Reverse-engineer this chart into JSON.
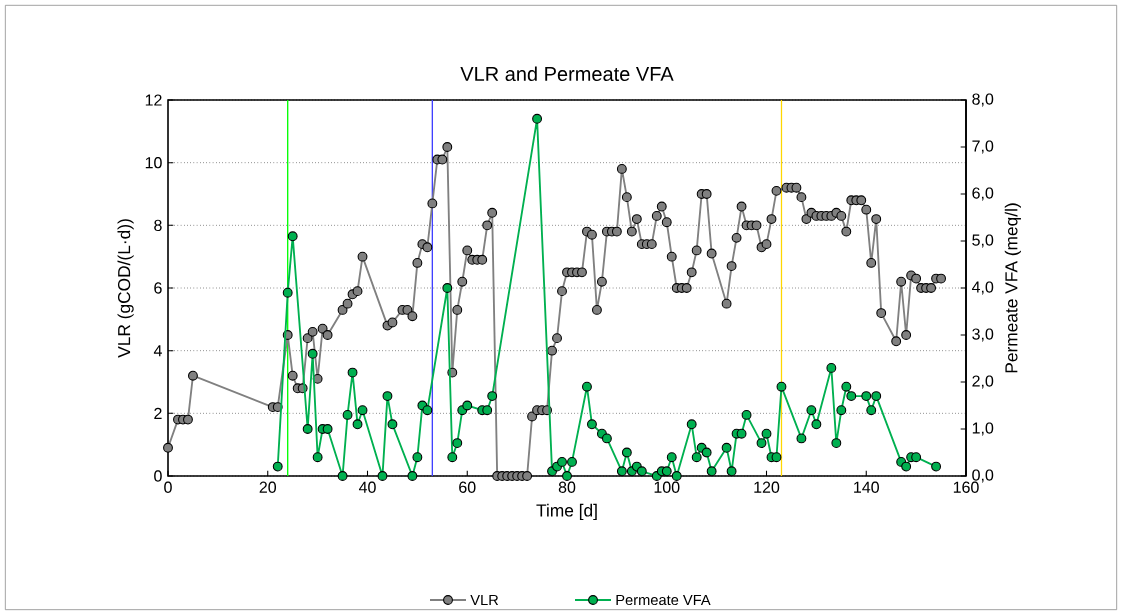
{
  "chart_data": {
    "type": "line",
    "title": "VLR and Permeate VFA",
    "xlabel": "Time [d]",
    "ylabel": "VLR (gCOD/(L·d))",
    "y2label": "Permeate VFA (meq/l)",
    "xlim": [
      0,
      160
    ],
    "xticks": [
      0,
      20,
      40,
      60,
      80,
      100,
      120,
      140,
      160
    ],
    "ylim": [
      0,
      12
    ],
    "yticks": [
      0,
      2,
      4,
      6,
      8,
      10,
      12
    ],
    "y2lim": [
      0,
      8
    ],
    "y2ticks": [
      {
        "value": 0,
        "label": "0,0"
      },
      {
        "value": 1,
        "label": "1,0"
      },
      {
        "value": 2,
        "label": "2,0"
      },
      {
        "value": 3,
        "label": "3,0"
      },
      {
        "value": 4,
        "label": "4,0"
      },
      {
        "value": 5,
        "label": "5,0"
      },
      {
        "value": 6,
        "label": "6,0"
      },
      {
        "value": 7,
        "label": "7,0"
      },
      {
        "value": 8,
        "label": "8,0"
      }
    ],
    "grid": "y",
    "legend": "bottom",
    "marker": "circle",
    "line_style": "solid",
    "ref_lines": [
      {
        "axis": "x",
        "value": 24,
        "color": "#00ff00"
      },
      {
        "axis": "x",
        "value": 53,
        "color": "#4040ff"
      },
      {
        "axis": "x",
        "value": 123,
        "color": "#ffd700"
      }
    ],
    "series": [
      {
        "name": "VLR",
        "color": "#808080",
        "x": [
          0,
          2,
          3,
          4,
          5,
          21,
          22,
          24,
          25,
          26,
          27,
          28,
          29,
          30,
          31,
          32,
          35,
          36,
          37,
          38,
          39,
          44,
          45,
          47,
          48,
          49,
          50,
          51,
          52,
          53,
          54,
          55,
          56,
          57,
          58,
          59,
          60,
          61,
          62,
          63,
          64,
          65,
          66,
          67,
          68,
          69,
          70,
          71,
          72,
          73,
          74,
          75,
          76,
          77,
          78,
          79,
          80,
          81,
          82,
          83,
          84,
          85,
          86,
          87,
          88,
          89,
          90,
          91,
          92,
          93,
          94,
          95,
          96,
          97,
          98,
          99,
          100,
          101,
          102,
          103,
          104,
          105,
          106,
          107,
          108,
          109,
          112,
          113,
          114,
          115,
          116,
          117,
          118,
          119,
          120,
          121,
          122,
          124,
          125,
          126,
          127,
          128,
          129,
          130,
          131,
          132,
          133,
          134,
          135,
          136,
          137,
          138,
          139,
          140,
          141,
          142,
          143,
          146,
          147,
          148,
          149,
          150,
          151,
          152,
          153,
          154,
          155
        ],
        "values": [
          0.9,
          1.8,
          1.8,
          1.8,
          3.2,
          2.2,
          2.2,
          4.5,
          3.2,
          2.8,
          2.8,
          4.4,
          4.6,
          3.1,
          4.7,
          4.5,
          5.3,
          5.5,
          5.8,
          5.9,
          7.0,
          4.8,
          4.9,
          5.3,
          5.3,
          5.1,
          6.8,
          7.4,
          7.3,
          8.7,
          10.1,
          10.1,
          10.5,
          3.3,
          5.3,
          6.2,
          7.2,
          6.9,
          6.9,
          6.9,
          8.0,
          8.4,
          0,
          0,
          0,
          0,
          0,
          0,
          0,
          1.9,
          2.1,
          2.1,
          2.1,
          4.0,
          4.4,
          5.9,
          6.5,
          6.5,
          6.5,
          6.5,
          7.8,
          7.7,
          5.3,
          6.2,
          7.8,
          7.8,
          7.8,
          9.8,
          8.9,
          7.8,
          8.2,
          7.4,
          7.4,
          7.4,
          8.3,
          8.6,
          8.1,
          7.0,
          6.0,
          6.0,
          6.0,
          6.5,
          7.2,
          9.0,
          9.0,
          7.1,
          5.5,
          6.7,
          7.6,
          8.6,
          8.0,
          8.0,
          8.0,
          7.3,
          7.4,
          8.2,
          9.1,
          9.2,
          9.2,
          9.2,
          8.9,
          8.2,
          8.4,
          8.3,
          8.3,
          8.3,
          8.3,
          8.4,
          8.3,
          7.8,
          8.8,
          8.8,
          8.8,
          8.5,
          6.8,
          8.2,
          5.2,
          4.3,
          6.2,
          4.5,
          6.4,
          6.3,
          6.0,
          6.0,
          6.0,
          6.3,
          6.3
        ]
      },
      {
        "name": "Permeate VFA",
        "color": "#00b050",
        "axis": "y2",
        "x": [
          22,
          24,
          25,
          28,
          29,
          30,
          31,
          32,
          35,
          36,
          37,
          38,
          39,
          43,
          44,
          45,
          49,
          50,
          51,
          52,
          56,
          57,
          58,
          59,
          60,
          63,
          64,
          65,
          74,
          77,
          78,
          79,
          80,
          81,
          84,
          85,
          87,
          88,
          91,
          92,
          93,
          94,
          95,
          98,
          99,
          100,
          101,
          102,
          105,
          106,
          107,
          108,
          109,
          112,
          113,
          114,
          115,
          116,
          119,
          120,
          121,
          122,
          123,
          127,
          129,
          130,
          133,
          134,
          135,
          136,
          137,
          140,
          141,
          142,
          147,
          148,
          149,
          150,
          154
        ],
        "values": [
          0.2,
          3.9,
          5.1,
          1.0,
          2.6,
          0.4,
          1.0,
          1.0,
          0.0,
          1.3,
          2.2,
          1.1,
          1.4,
          0.0,
          1.7,
          1.1,
          0.0,
          0.4,
          1.5,
          1.4,
          4.0,
          0.4,
          0.7,
          1.4,
          1.5,
          1.4,
          1.4,
          1.7,
          7.6,
          0.1,
          0.2,
          0.3,
          0.0,
          0.3,
          1.9,
          1.1,
          0.9,
          0.8,
          0.1,
          0.5,
          0.1,
          0.2,
          0.1,
          0.0,
          0.1,
          0.1,
          0.4,
          0.0,
          1.1,
          0.4,
          0.6,
          0.5,
          0.1,
          0.6,
          0.1,
          0.9,
          0.9,
          1.3,
          0.7,
          0.9,
          0.4,
          0.4,
          1.9,
          0.8,
          1.4,
          1.1,
          2.3,
          0.7,
          1.4,
          1.9,
          1.7,
          1.7,
          1.4,
          1.7,
          0.3,
          0.2,
          0.4,
          0.4,
          0.2
        ]
      }
    ]
  }
}
